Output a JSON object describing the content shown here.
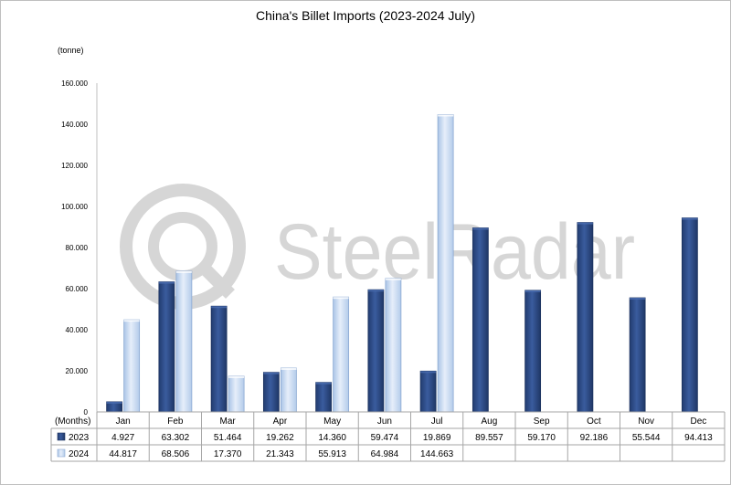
{
  "chart_data": {
    "type": "bar",
    "title": "China's Billet Imports (2023-2024 July)",
    "ylabel": "(tonne)",
    "xlabel": "(Months)",
    "ylim": [
      0,
      160
    ],
    "yticks": [
      0,
      20,
      40,
      60,
      80,
      100,
      120,
      140,
      160
    ],
    "ytick_labels": [
      "0",
      "20.000",
      "40.000",
      "60.000",
      "80.000",
      "100.000",
      "120.000",
      "140.000",
      "160.000"
    ],
    "categories": [
      "Jan",
      "Feb",
      "Mar",
      "Apr",
      "May",
      "Jun",
      "Jul",
      "Aug",
      "Sep",
      "Oct",
      "Nov",
      "Dec"
    ],
    "series": [
      {
        "name": "2023",
        "color": "#2e4d8c",
        "values": [
          4.927,
          63.302,
          51.464,
          19.262,
          14.36,
          59.474,
          19.869,
          89.557,
          59.17,
          92.186,
          55.544,
          94.413
        ],
        "labels": [
          "4.927",
          "63.302",
          "51.464",
          "19.262",
          "14.360",
          "59.474",
          "19.869",
          "89.557",
          "59.170",
          "92.186",
          "55.544",
          "94.413"
        ]
      },
      {
        "name": "2024",
        "color": "#c6d9f1",
        "values": [
          44.817,
          68.506,
          17.37,
          21.343,
          55.913,
          64.984,
          144.663,
          null,
          null,
          null,
          null,
          null
        ],
        "labels": [
          "44.817",
          "68.506",
          "17.370",
          "21.343",
          "55.913",
          "64.984",
          "144.663",
          "",
          "",
          "",
          "",
          ""
        ]
      }
    ],
    "legend": "data-table",
    "grid": false,
    "watermark": "SteelRadar"
  }
}
